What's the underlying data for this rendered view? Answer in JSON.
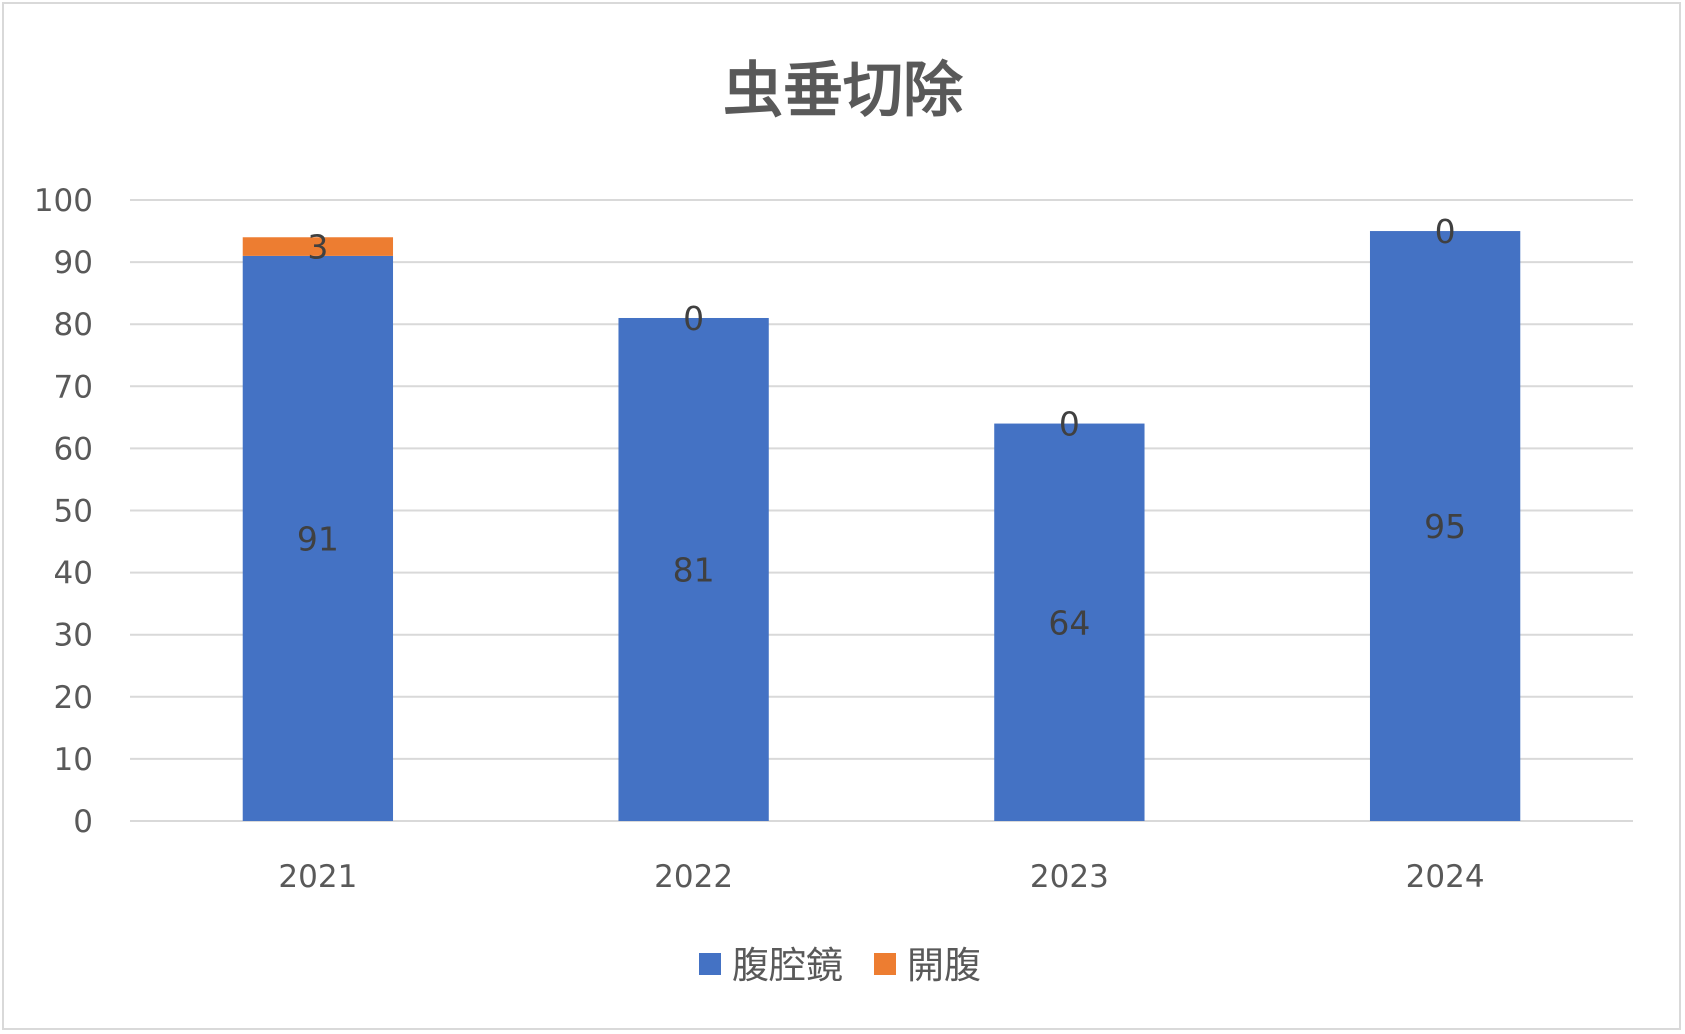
{
  "chart_data": {
    "type": "bar",
    "stacked": true,
    "title": "虫垂切除",
    "categories": [
      "2021",
      "2022",
      "2023",
      "2024"
    ],
    "series": [
      {
        "name": "腹腔鏡",
        "values": [
          91,
          81,
          64,
          95
        ],
        "color": "#4472c4"
      },
      {
        "name": "開腹",
        "values": [
          3,
          0,
          0,
          0
        ],
        "color": "#ed7d31"
      }
    ],
    "ylim": [
      0,
      100
    ],
    "yticks": [
      0,
      10,
      20,
      30,
      40,
      50,
      60,
      70,
      80,
      90,
      100
    ],
    "grid": true,
    "legend_position": "bottom"
  }
}
